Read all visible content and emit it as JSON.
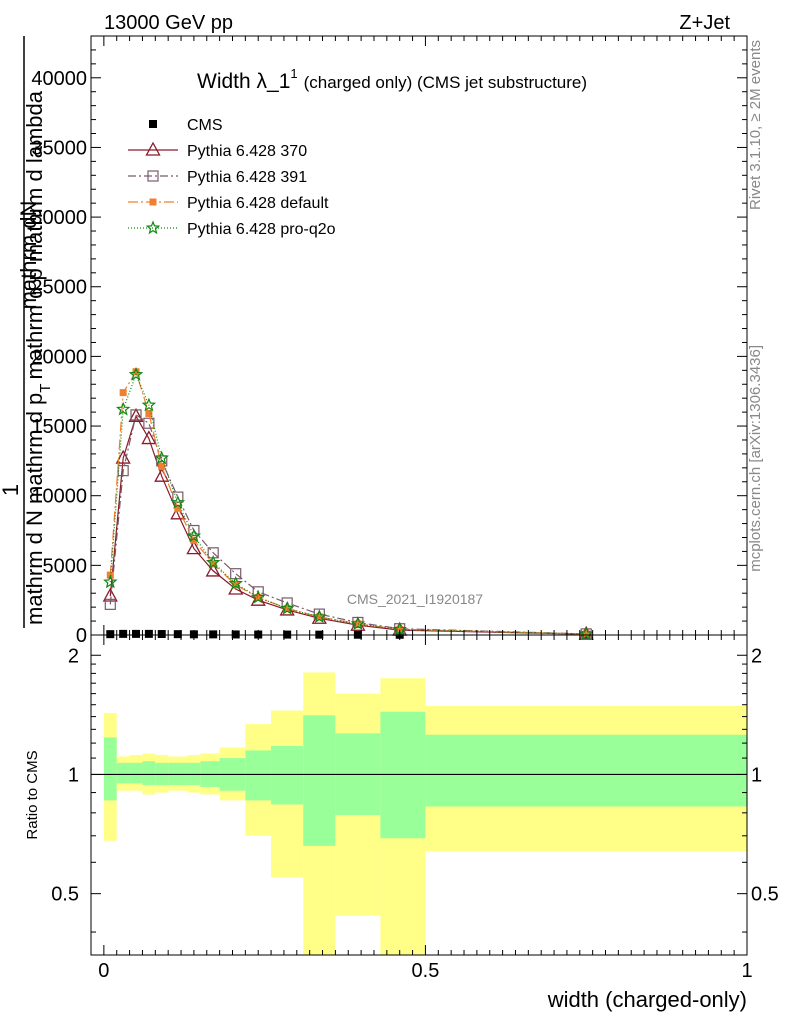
{
  "header": {
    "left": "13000 GeV pp",
    "right": "Z+Jet",
    "watermark": "CMS_2021_I1920187",
    "side_top": "Rivet 3.1.10, ≥ 2M events",
    "side_bottom": "mcplots.cern.ch [arXiv:1306.3436]"
  },
  "chart_data": [
    {
      "type": "line",
      "title_main": "Width λ_1",
      "title_sup": "1",
      "title_rest": "(charged only) (CMS jet substructure)",
      "ylabel_numerator": "mathrm dN",
      "ylabel_prefix": "1",
      "ylabel_denominator": "mathrm d N mathrm d p",
      "ylabel_subscript": "T",
      "ylabel_suffix": "mathrm d p mathrm d lambda",
      "ylim": [
        0,
        43000
      ],
      "xlim": [
        -0.02,
        1.0
      ],
      "y_ticks": [
        0,
        5000,
        10000,
        15000,
        20000,
        25000,
        30000,
        35000,
        40000
      ],
      "y_tick_labels": [
        "0",
        "5000",
        "10000",
        "15000",
        "20000",
        "25000",
        "30000",
        "35000",
        "40000"
      ],
      "legend": "top-left",
      "series": [
        {
          "name": "CMS",
          "color": "#000000",
          "marker": "filled-square",
          "dash": "none",
          "x": [
            0.01,
            0.03,
            0.05,
            0.07,
            0.09,
            0.115,
            0.14,
            0.17,
            0.205,
            0.24,
            0.285,
            0.335,
            0.395,
            0.46,
            0.75
          ],
          "y": [
            60,
            80,
            80,
            80,
            70,
            60,
            50,
            45,
            40,
            35,
            30,
            25,
            20,
            15,
            5
          ]
        },
        {
          "name": "Pythia 6.428 370",
          "color": "#8b1a2a",
          "marker": "open-triangle",
          "dash": "none",
          "x": [
            0.01,
            0.03,
            0.05,
            0.07,
            0.09,
            0.115,
            0.14,
            0.17,
            0.205,
            0.24,
            0.285,
            0.335,
            0.395,
            0.46,
            0.75
          ],
          "y": [
            2800,
            12700,
            15700,
            14100,
            11400,
            8700,
            6200,
            4600,
            3300,
            2500,
            1800,
            1200,
            700,
            350,
            60
          ]
        },
        {
          "name": "Pythia 6.428 391",
          "color": "#7a5a6a",
          "marker": "open-square",
          "dash": "8,3,2,3",
          "x": [
            0.01,
            0.03,
            0.05,
            0.07,
            0.09,
            0.115,
            0.14,
            0.17,
            0.205,
            0.24,
            0.285,
            0.335,
            0.395,
            0.46,
            0.75
          ],
          "y": [
            2200,
            11800,
            15800,
            15200,
            12500,
            9900,
            7500,
            5900,
            4400,
            3100,
            2300,
            1500,
            900,
            450,
            80
          ]
        },
        {
          "name": "Pythia 6.428 default",
          "color": "#f08030",
          "marker": "filled-square-small",
          "dash": "10,3,2,3",
          "x": [
            0.01,
            0.03,
            0.05,
            0.07,
            0.09,
            0.115,
            0.14,
            0.17,
            0.205,
            0.24,
            0.285,
            0.335,
            0.395,
            0.46,
            0.75
          ],
          "y": [
            4300,
            17400,
            18900,
            15900,
            12100,
            9100,
            6800,
            5100,
            3600,
            2700,
            1900,
            1300,
            800,
            400,
            70
          ]
        },
        {
          "name": "Pythia 6.428 pro-q2o",
          "color": "#118811",
          "marker": "star",
          "dash": "1,2",
          "x": [
            0.01,
            0.03,
            0.05,
            0.07,
            0.09,
            0.115,
            0.14,
            0.17,
            0.205,
            0.24,
            0.285,
            0.335,
            0.395,
            0.46,
            0.75
          ],
          "y": [
            3800,
            16200,
            18700,
            16500,
            12700,
            9500,
            7100,
            5200,
            3700,
            2700,
            1900,
            1300,
            800,
            400,
            70
          ]
        }
      ]
    },
    {
      "type": "area",
      "xlabel": "width (charged-only)",
      "ylabel": "Ratio to CMS",
      "xlim": [
        -0.02,
        1.0
      ],
      "ylim": [
        0.35,
        2.25
      ],
      "x_ticks": [
        0,
        0.5,
        1
      ],
      "x_tick_labels": [
        "0",
        "0.5",
        "1"
      ],
      "y_ticks": [
        0.5,
        1,
        2
      ],
      "y_tick_labels": [
        "0.5",
        "1",
        "2"
      ],
      "band_colors": {
        "stat": "#99ff99",
        "total": "#ffff88"
      },
      "bins": [
        {
          "lo": 0.0,
          "hi": 0.02,
          "green": [
            0.86,
            1.24
          ],
          "yellow": [
            0.68,
            1.43
          ]
        },
        {
          "lo": 0.02,
          "hi": 0.04,
          "green": [
            0.95,
            1.07
          ],
          "yellow": [
            0.91,
            1.11
          ]
        },
        {
          "lo": 0.04,
          "hi": 0.06,
          "green": [
            0.95,
            1.07
          ],
          "yellow": [
            0.91,
            1.12
          ]
        },
        {
          "lo": 0.06,
          "hi": 0.08,
          "green": [
            0.94,
            1.08
          ],
          "yellow": [
            0.89,
            1.13
          ]
        },
        {
          "lo": 0.08,
          "hi": 0.1,
          "green": [
            0.94,
            1.07
          ],
          "yellow": [
            0.9,
            1.12
          ]
        },
        {
          "lo": 0.1,
          "hi": 0.13,
          "green": [
            0.94,
            1.07
          ],
          "yellow": [
            0.91,
            1.11
          ]
        },
        {
          "lo": 0.13,
          "hi": 0.15,
          "green": [
            0.94,
            1.07
          ],
          "yellow": [
            0.9,
            1.12
          ]
        },
        {
          "lo": 0.15,
          "hi": 0.18,
          "green": [
            0.93,
            1.08
          ],
          "yellow": [
            0.89,
            1.13
          ]
        },
        {
          "lo": 0.18,
          "hi": 0.22,
          "green": [
            0.91,
            1.1
          ],
          "yellow": [
            0.86,
            1.17
          ]
        },
        {
          "lo": 0.22,
          "hi": 0.26,
          "green": [
            0.86,
            1.15
          ],
          "yellow": [
            0.7,
            1.34
          ]
        },
        {
          "lo": 0.26,
          "hi": 0.31,
          "green": [
            0.84,
            1.18
          ],
          "yellow": [
            0.55,
            1.45
          ]
        },
        {
          "lo": 0.31,
          "hi": 0.36,
          "green": [
            0.66,
            1.41
          ],
          "yellow": [
            0.35,
            1.81
          ]
        },
        {
          "lo": 0.36,
          "hi": 0.43,
          "green": [
            0.79,
            1.27
          ],
          "yellow": [
            0.44,
            1.6
          ]
        },
        {
          "lo": 0.43,
          "hi": 0.5,
          "green": [
            0.69,
            1.44
          ],
          "yellow": [
            0.35,
            1.75
          ]
        },
        {
          "lo": 0.5,
          "hi": 1.0,
          "green": [
            0.83,
            1.26
          ],
          "yellow": [
            0.64,
            1.49
          ]
        }
      ]
    }
  ]
}
